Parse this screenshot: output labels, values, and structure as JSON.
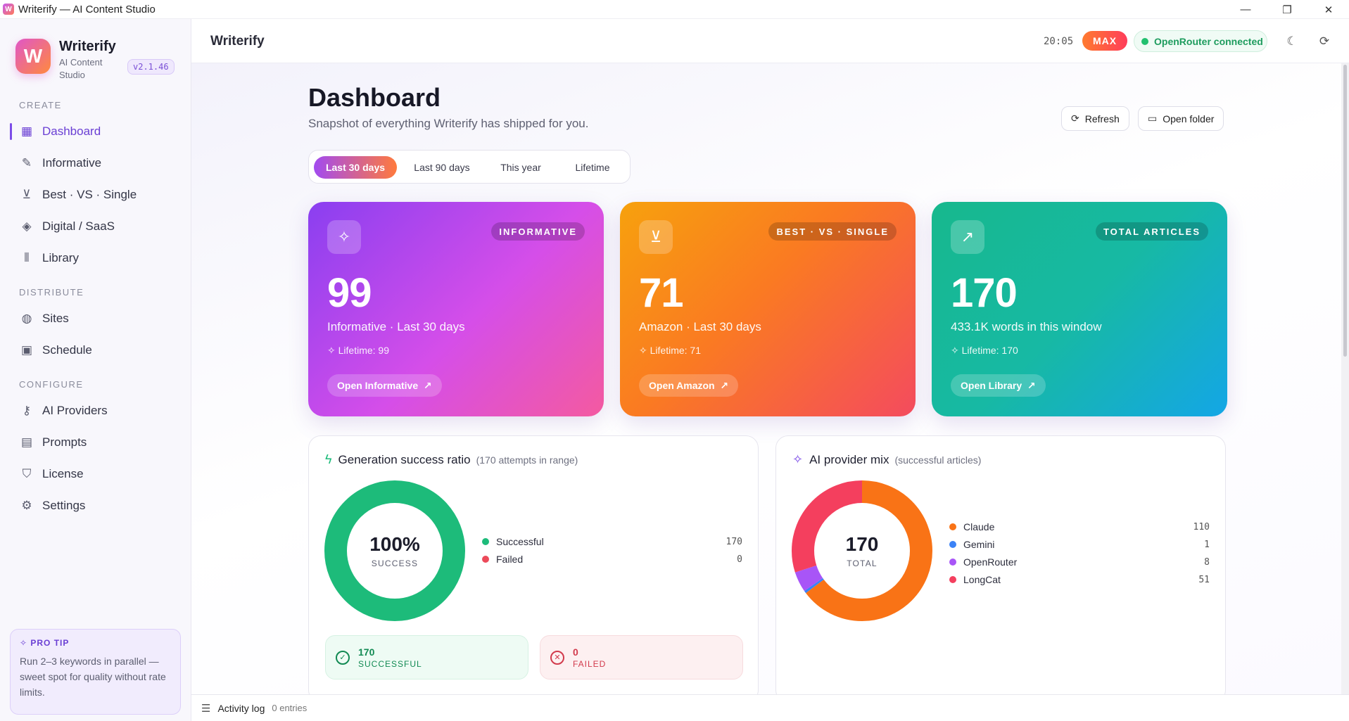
{
  "window": {
    "title": "Writerify — AI Content Studio",
    "app_icon": "W",
    "controls": {
      "minimize": "—",
      "maximize": "❐",
      "close": "✕"
    }
  },
  "sidebar": {
    "brand_name": "Writerify",
    "brand_sub": "AI Content Studio",
    "logo_letter": "W",
    "version": "v2.1.46",
    "sections": [
      {
        "title": "CREATE"
      },
      {
        "title": "DISTRIBUTE"
      },
      {
        "title": "CONFIGURE"
      }
    ],
    "items": [
      {
        "label": "Dashboard",
        "icon": "dashboard-icon",
        "glyph": "▦",
        "active": true
      },
      {
        "label": "Informative",
        "icon": "magic-wand-icon",
        "glyph": "✎"
      },
      {
        "label": "Best · VS · Single",
        "icon": "cart-icon",
        "glyph": "⊻"
      },
      {
        "label": "Digital / SaaS",
        "icon": "layers-icon",
        "glyph": "◈"
      },
      {
        "label": "Library",
        "icon": "library-icon",
        "glyph": "⫴"
      },
      {
        "label": "Sites",
        "icon": "globe-icon",
        "glyph": "◍"
      },
      {
        "label": "Schedule",
        "icon": "calendar-icon",
        "glyph": "▣"
      },
      {
        "label": "AI Providers",
        "icon": "key-icon",
        "glyph": "⚷"
      },
      {
        "label": "Prompts",
        "icon": "document-icon",
        "glyph": "▤"
      },
      {
        "label": "License",
        "icon": "shield-icon",
        "glyph": "⛉"
      },
      {
        "label": "Settings",
        "icon": "gear-icon",
        "glyph": "⚙"
      }
    ],
    "protip": {
      "title": "PRO TIP",
      "body": "Run 2–3 keywords in parallel — sweet spot for quality without rate limits."
    }
  },
  "header": {
    "title": "Writerify",
    "clock": "20:05",
    "plan": "MAX",
    "connection": "OpenRouter connected",
    "theme_icon": "☾",
    "sync_icon": "⟳"
  },
  "dashboard": {
    "title": "Dashboard",
    "subtitle": "Snapshot of everything Writerify has shipped for you.",
    "refresh_label": "Refresh",
    "open_folder_label": "Open folder",
    "ranges": [
      "Last 30 days",
      "Last 90 days",
      "This year",
      "Lifetime"
    ],
    "active_range": "Last 30 days",
    "cards": [
      {
        "tag": "INFORMATIVE",
        "value": "99",
        "subtitle": "Informative · Last 30 days",
        "lifetime": "Lifetime: 99",
        "button": "Open Informative",
        "icon": "✧"
      },
      {
        "tag": "BEST · VS · SINGLE",
        "value": "71",
        "subtitle": "Amazon · Last 30 days",
        "lifetime": "Lifetime: 71",
        "button": "Open Amazon",
        "icon": "⊻"
      },
      {
        "tag": "TOTAL ARTICLES",
        "value": "170",
        "subtitle": "433.1K words in this window",
        "lifetime": "Lifetime: 170",
        "button": "Open Library",
        "icon": "↗"
      }
    ]
  },
  "success_panel": {
    "title": "Generation success ratio",
    "note": "(170 attempts in range)",
    "center_value": "100%",
    "center_label": "SUCCESS",
    "legend": [
      {
        "label": "Successful",
        "value": "170",
        "color": "#1dbb7a"
      },
      {
        "label": "Failed",
        "value": "0",
        "color": "#ec4a5a"
      }
    ],
    "success_pill": {
      "count": "170",
      "label": "SUCCESSFUL"
    },
    "failed_pill": {
      "count": "0",
      "label": "FAILED"
    }
  },
  "provider_panel": {
    "title": "AI provider mix",
    "note": "(successful articles)",
    "center_value": "170",
    "center_label": "TOTAL",
    "legend": [
      {
        "label": "Claude",
        "value": "110",
        "color": "#f97316"
      },
      {
        "label": "Gemini",
        "value": "1",
        "color": "#3b82f6"
      },
      {
        "label": "OpenRouter",
        "value": "8",
        "color": "#a855f7"
      },
      {
        "label": "LongCat",
        "value": "51",
        "color": "#f43f5e"
      }
    ]
  },
  "chart_data": [
    {
      "type": "pie",
      "categories": [
        "Successful",
        "Failed"
      ],
      "values": [
        170,
        0
      ],
      "title": "Generation success ratio"
    },
    {
      "type": "pie",
      "categories": [
        "Claude",
        "Gemini",
        "OpenRouter",
        "LongCat"
      ],
      "values": [
        110,
        1,
        8,
        51
      ],
      "title": "AI provider mix"
    }
  ],
  "activity": {
    "title": "Activity log",
    "count": "0 entries"
  }
}
